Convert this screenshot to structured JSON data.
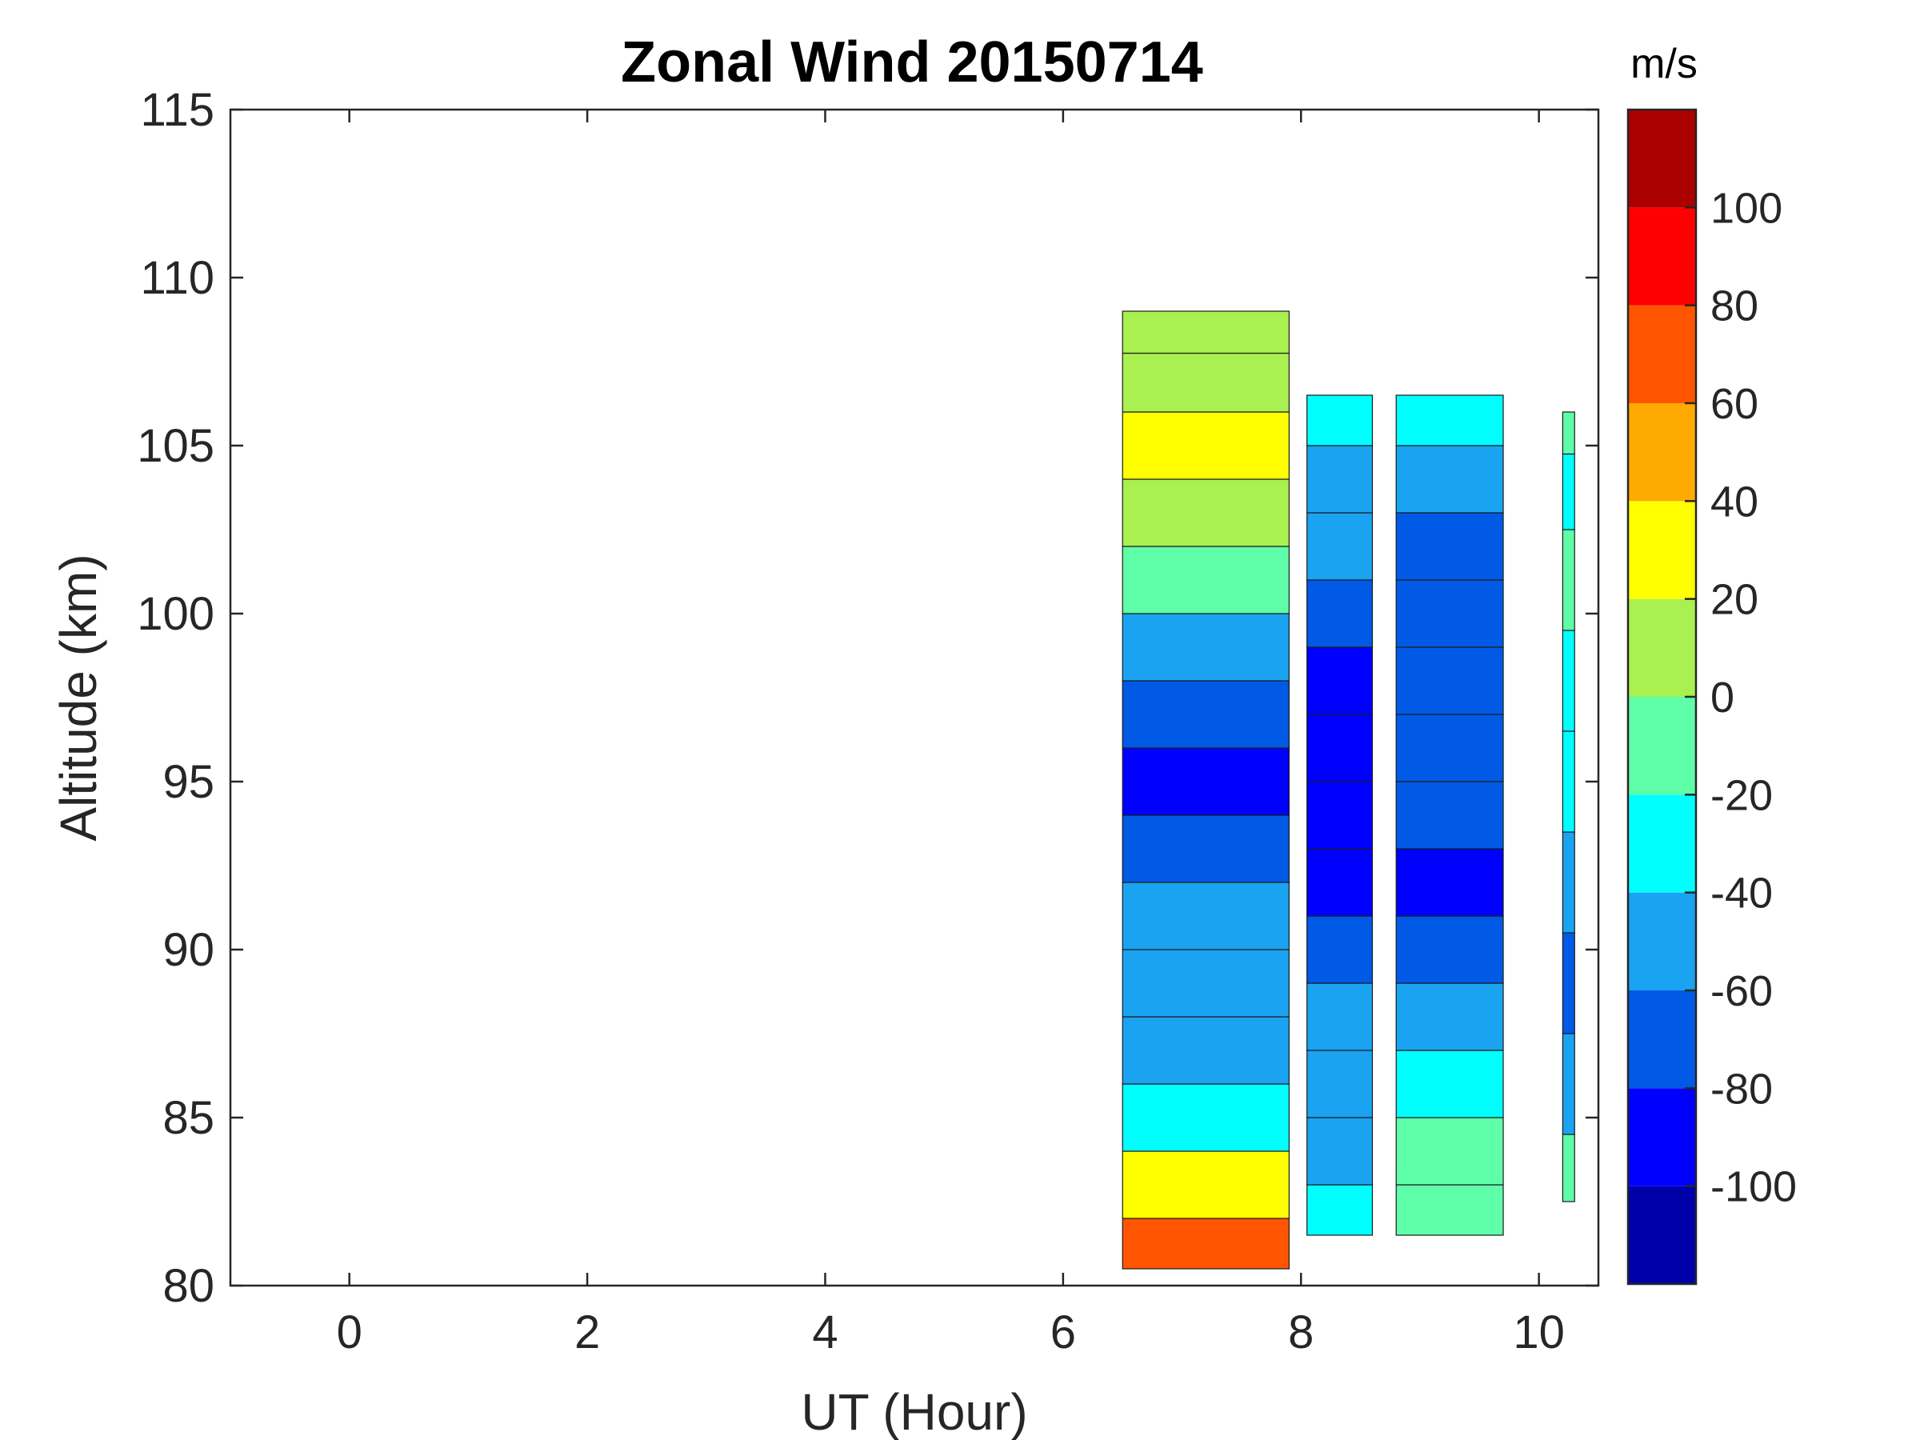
{
  "chart_data": {
    "type": "heatmap",
    "subtype": "filled-contour",
    "title": "Zonal Wind 20150714",
    "xlabel": "UT (Hour)",
    "ylabel": "Altitude (km)",
    "xlim": [
      -1,
      10.5
    ],
    "ylim": [
      80,
      115
    ],
    "xticks": [
      "0",
      "2",
      "4",
      "6",
      "8",
      "10"
    ],
    "yticks": [
      "80",
      "85",
      "90",
      "95",
      "100",
      "105",
      "110",
      "115"
    ],
    "grid": false,
    "colorbar": {
      "unit": "m/s",
      "range": [
        -120,
        120
      ],
      "levels": [
        -120,
        -100,
        -80,
        -60,
        -40,
        -20,
        0,
        20,
        40,
        60,
        80,
        100,
        120
      ],
      "tick_labels": [
        "-100",
        "-80",
        "-60",
        "-40",
        "-20",
        "0",
        "20",
        "40",
        "60",
        "80",
        "100"
      ],
      "colors": [
        "#0000aa",
        "#0000ff",
        "#005ae6",
        "#1aa3f0",
        "#00ffff",
        "#5effa8",
        "#aaf050",
        "#ffff00",
        "#ffaa00",
        "#ff5500",
        "#ff0000",
        "#aa0000"
      ]
    },
    "data_blocks": [
      {
        "name": "block-1",
        "ut_range": [
          6.5,
          7.9
        ],
        "profile": [
          {
            "alt": 81,
            "value": 70
          },
          {
            "alt": 83,
            "value": 25
          },
          {
            "alt": 85,
            "value": -30
          },
          {
            "alt": 87,
            "value": -50
          },
          {
            "alt": 89,
            "value": -60
          },
          {
            "alt": 91,
            "value": -55
          },
          {
            "alt": 93,
            "value": -70
          },
          {
            "alt": 95,
            "value": -85
          },
          {
            "alt": 97,
            "value": -75
          },
          {
            "alt": 99,
            "value": -45
          },
          {
            "alt": 101,
            "value": -10
          },
          {
            "alt": 103,
            "value": 5
          },
          {
            "alt": 105,
            "value": 20
          },
          {
            "alt": 107,
            "value": 15
          },
          {
            "alt": 108.5,
            "value": 10
          }
        ]
      },
      {
        "name": "block-2",
        "ut_range": [
          8.05,
          8.6
        ],
        "profile": [
          {
            "alt": 82,
            "value": -25
          },
          {
            "alt": 84,
            "value": -45
          },
          {
            "alt": 86,
            "value": -55
          },
          {
            "alt": 88,
            "value": -50
          },
          {
            "alt": 90,
            "value": -70
          },
          {
            "alt": 92,
            "value": -90
          },
          {
            "alt": 94,
            "value": -95
          },
          {
            "alt": 96,
            "value": -100
          },
          {
            "alt": 98,
            "value": -90
          },
          {
            "alt": 100,
            "value": -70
          },
          {
            "alt": 102,
            "value": -55
          },
          {
            "alt": 104,
            "value": -45
          },
          {
            "alt": 106,
            "value": -35
          }
        ]
      },
      {
        "name": "block-3",
        "ut_range": [
          8.8,
          9.7
        ],
        "profile": [
          {
            "alt": 82,
            "value": -20
          },
          {
            "alt": 84,
            "value": -10
          },
          {
            "alt": 86,
            "value": -30
          },
          {
            "alt": 88,
            "value": -55
          },
          {
            "alt": 90,
            "value": -80
          },
          {
            "alt": 92,
            "value": -85
          },
          {
            "alt": 94,
            "value": -80
          },
          {
            "alt": 96,
            "value": -75
          },
          {
            "alt": 98,
            "value": -65
          },
          {
            "alt": 100,
            "value": -75
          },
          {
            "alt": 102,
            "value": -70
          },
          {
            "alt": 104,
            "value": -45
          },
          {
            "alt": 106,
            "value": -30
          }
        ]
      },
      {
        "name": "block-4",
        "ut_range": [
          10.2,
          10.3
        ],
        "profile": [
          {
            "alt": 83,
            "value": -20
          },
          {
            "alt": 86,
            "value": -45
          },
          {
            "alt": 89,
            "value": -70
          },
          {
            "alt": 92,
            "value": -60
          },
          {
            "alt": 95,
            "value": -40
          },
          {
            "alt": 98,
            "value": -25
          },
          {
            "alt": 101,
            "value": -15
          },
          {
            "alt": 104,
            "value": -25
          },
          {
            "alt": 105.5,
            "value": -10
          }
        ]
      }
    ]
  }
}
